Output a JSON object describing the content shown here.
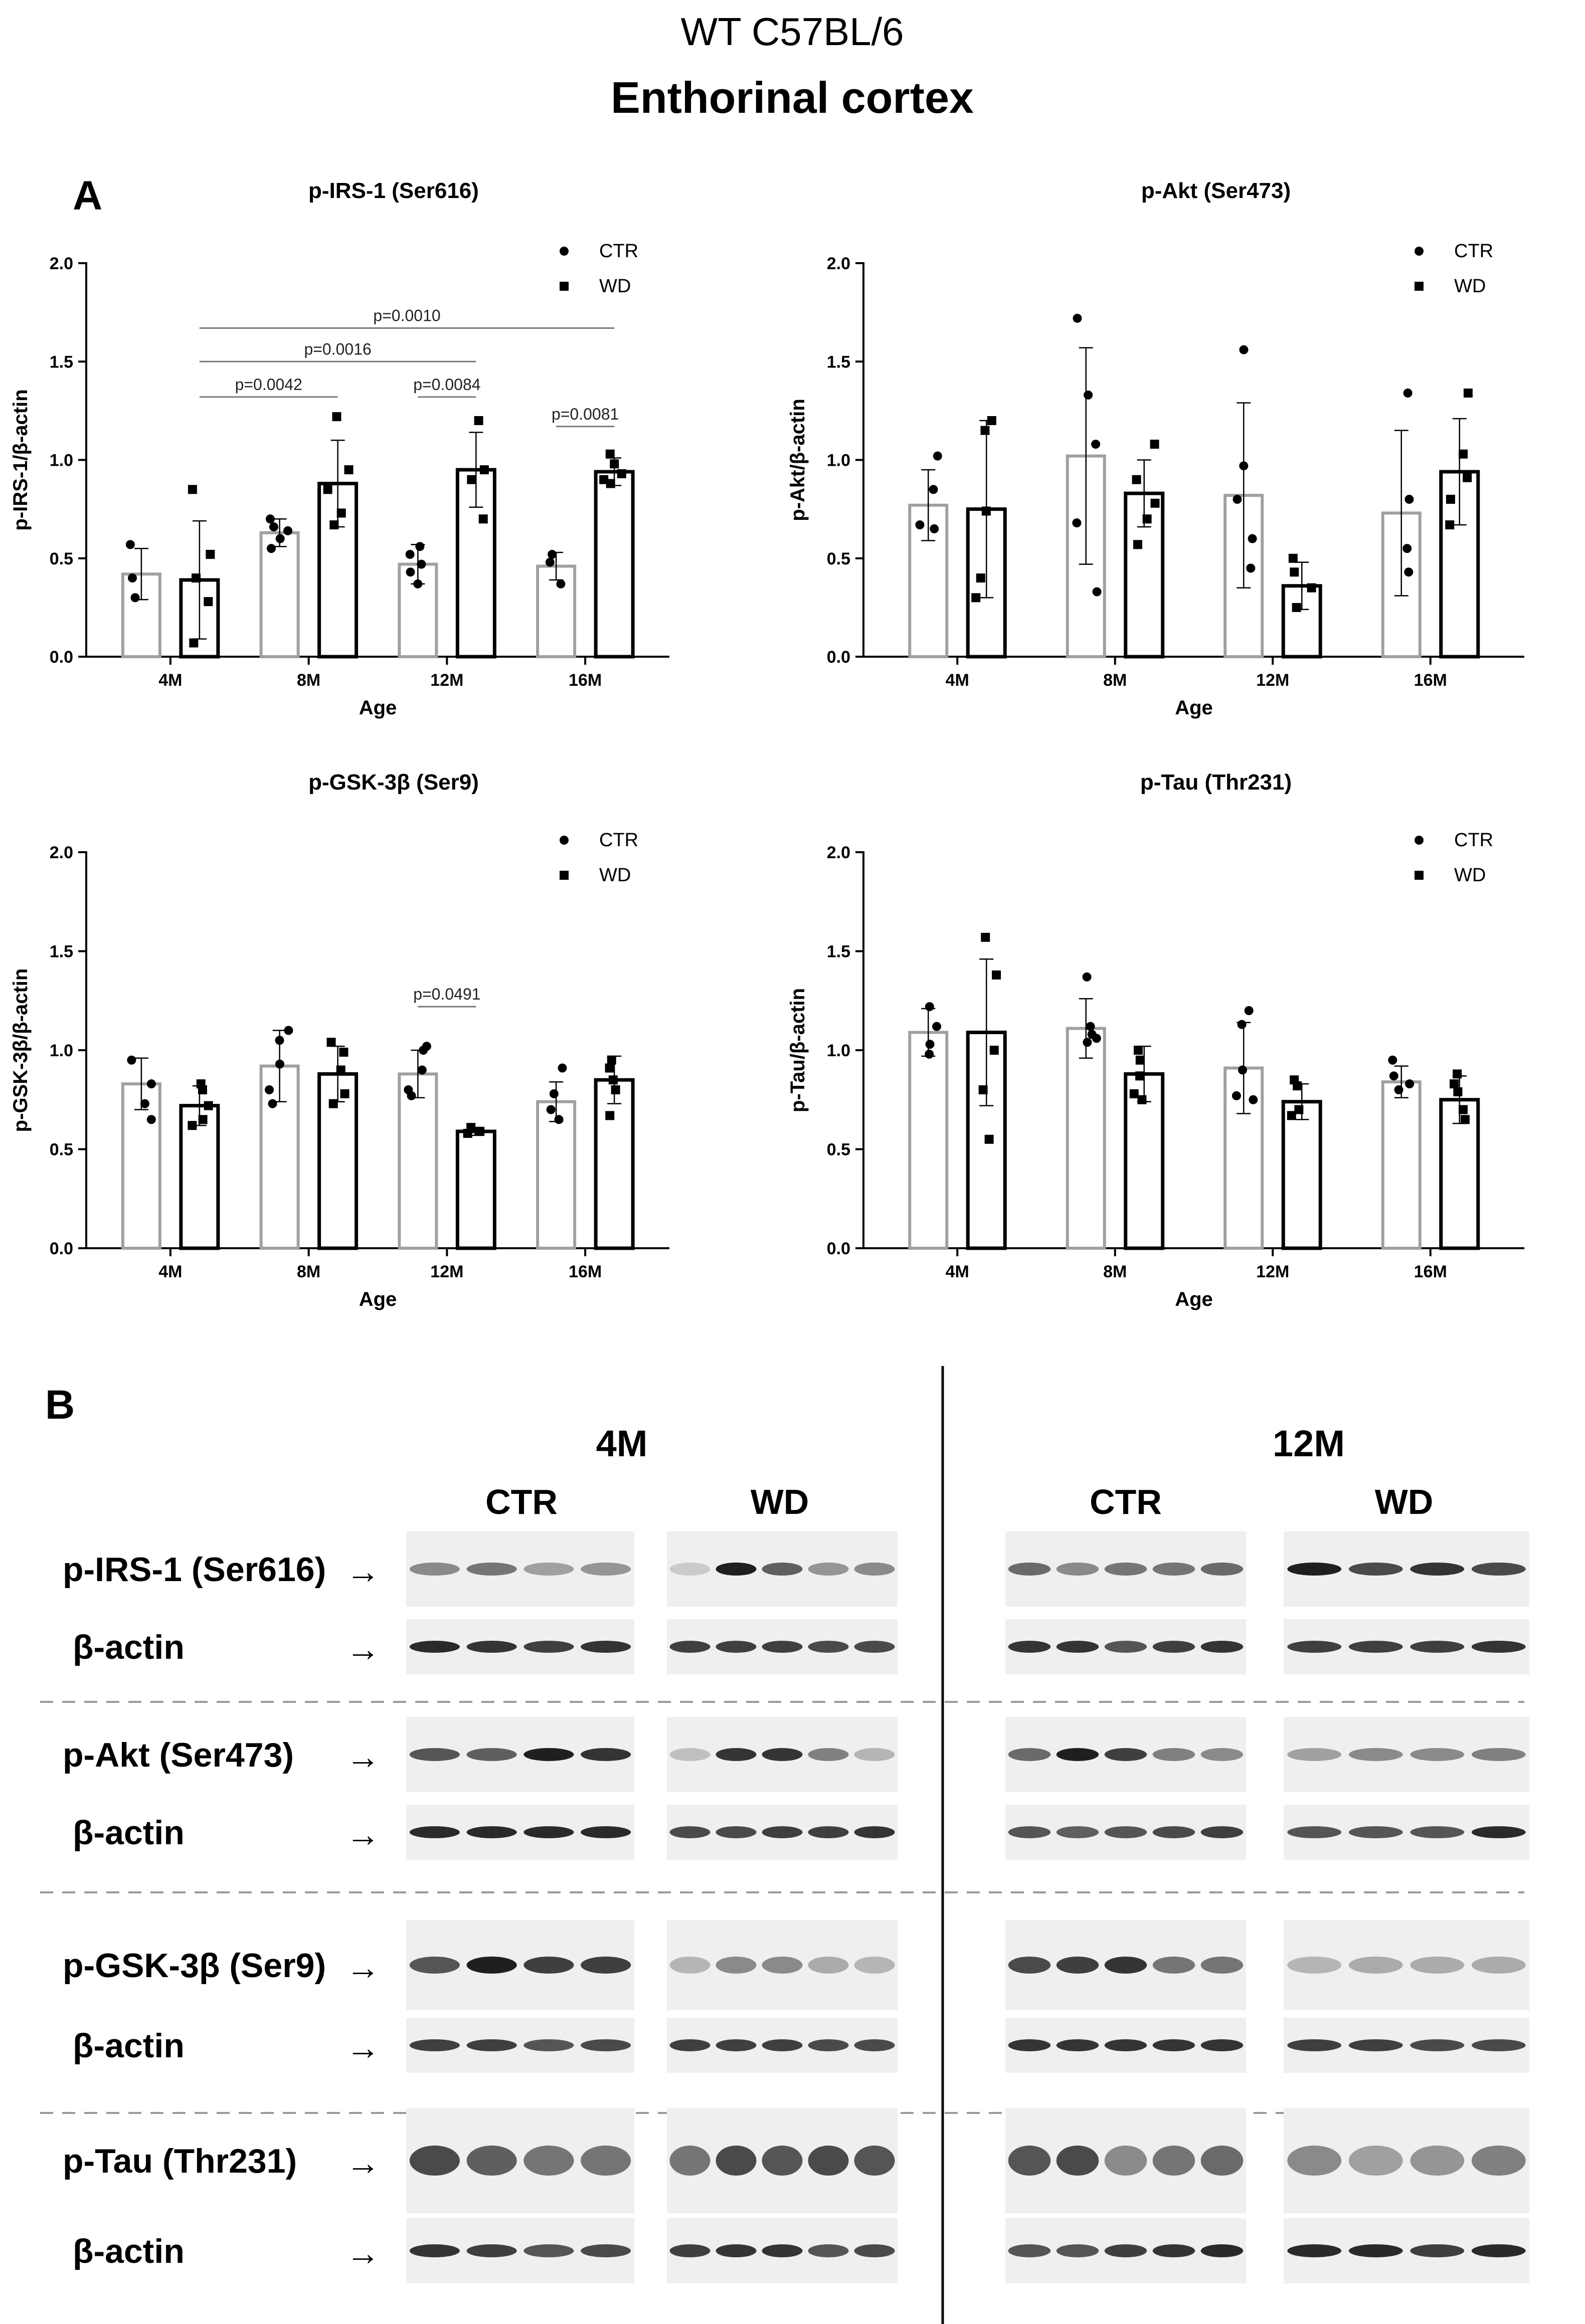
{
  "header": {
    "strain": "WT C57BL/6",
    "region": "Enthorinal cortex"
  },
  "panels": {
    "a_label": "A",
    "b_label": "B"
  },
  "chart_data": [
    {
      "type": "bar",
      "title": "p-IRS-1 (Ser616)",
      "xlabel": "Age",
      "ylabel": "p-IRS-1/β-actin",
      "ylim": [
        0,
        2.0
      ],
      "yticks": [
        "0.0",
        "0.5",
        "1.0",
        "1.5",
        "2.0"
      ],
      "grid": false,
      "legend_position": "top-right",
      "categories": [
        "4M",
        "8M",
        "12M",
        "16M"
      ],
      "series": [
        {
          "name": "CTR",
          "marker": "circle",
          "color": "#a0a0a0",
          "values": [
            0.42,
            0.63,
            0.47,
            0.46
          ],
          "error": [
            0.13,
            0.07,
            0.1,
            0.07
          ],
          "points": [
            [
              0.57,
              0.3,
              0.4
            ],
            [
              0.55,
              0.6,
              0.66,
              0.7,
              0.64
            ],
            [
              0.37,
              0.43,
              0.52,
              0.56,
              0.47
            ],
            [
              0.37,
              0.48,
              0.52
            ]
          ]
        },
        {
          "name": "WD",
          "marker": "square",
          "color": "#000000",
          "values": [
            0.39,
            0.88,
            0.95,
            0.94
          ],
          "error": [
            0.3,
            0.22,
            0.19,
            0.07
          ],
          "points": [
            [
              0.85,
              0.52,
              0.28,
              0.07,
              0.4
            ],
            [
              0.67,
              0.85,
              0.95,
              1.22,
              0.73
            ],
            [
              1.2,
              0.95,
              0.9,
              0.7
            ],
            [
              1.03,
              0.88,
              0.93,
              0.98,
              0.9
            ]
          ]
        }
      ],
      "annotations": [
        {
          "text": "p=0.0010",
          "from": "4M-WD",
          "to": "16M-WD",
          "level": 1.67
        },
        {
          "text": "p=0.0016",
          "from": "4M-WD",
          "to": "12M-WD",
          "level": 1.5
        },
        {
          "text": "p=0.0042",
          "from": "4M-WD",
          "to": "8M-WD",
          "level": 1.32
        },
        {
          "text": "p=0.0084",
          "from": "12M-CTR",
          "to": "12M-WD",
          "level": 1.32
        },
        {
          "text": "p=0.0081",
          "from": "16M-CTR",
          "to": "16M-WD",
          "level": 1.17
        }
      ]
    },
    {
      "type": "bar",
      "title": "p-Akt (Ser473)",
      "xlabel": "Age",
      "ylabel": "p-Akt/β-actin",
      "ylim": [
        0,
        2.0
      ],
      "yticks": [
        "0.0",
        "0.5",
        "1.0",
        "1.5",
        "2.0"
      ],
      "grid": false,
      "legend_position": "top-right",
      "categories": [
        "4M",
        "8M",
        "12M",
        "16M"
      ],
      "series": [
        {
          "name": "CTR",
          "marker": "circle",
          "color": "#a0a0a0",
          "values": [
            0.77,
            1.02,
            0.82,
            0.73
          ],
          "error": [
            0.18,
            0.55,
            0.47,
            0.42
          ],
          "points": [
            [
              1.02,
              0.85,
              0.67,
              0.65
            ],
            [
              1.72,
              1.33,
              1.08,
              0.68,
              0.33
            ],
            [
              1.56,
              0.97,
              0.8,
              0.6,
              0.45
            ],
            [
              1.34,
              0.8,
              0.55,
              0.43
            ]
          ]
        },
        {
          "name": "WD",
          "marker": "square",
          "color": "#000000",
          "values": [
            0.75,
            0.83,
            0.36,
            0.94
          ],
          "error": [
            0.45,
            0.17,
            0.12,
            0.27
          ],
          "points": [
            [
              1.2,
              1.15,
              0.74,
              0.4,
              0.3
            ],
            [
              1.08,
              0.9,
              0.78,
              0.7,
              0.57
            ],
            [
              0.5,
              0.43,
              0.35,
              0.25
            ],
            [
              1.34,
              1.03,
              0.91,
              0.8,
              0.67
            ]
          ]
        }
      ],
      "annotations": []
    },
    {
      "type": "bar",
      "title": "p-GSK-3β (Ser9)",
      "xlabel": "Age",
      "ylabel": "p-GSK-3β/β-actin",
      "ylim": [
        0,
        2.0
      ],
      "yticks": [
        "0.0",
        "0.5",
        "1.0",
        "1.5",
        "2.0"
      ],
      "grid": false,
      "legend_position": "top-right",
      "categories": [
        "4M",
        "8M",
        "12M",
        "16M"
      ],
      "series": [
        {
          "name": "CTR",
          "marker": "circle",
          "color": "#a0a0a0",
          "values": [
            0.83,
            0.92,
            0.88,
            0.74
          ],
          "error": [
            0.13,
            0.18,
            0.12,
            0.1
          ],
          "points": [
            [
              0.95,
              0.83,
              0.73,
              0.65
            ],
            [
              1.1,
              1.05,
              0.93,
              0.8,
              0.73
            ],
            [
              1.02,
              1.0,
              0.9,
              0.8,
              0.77
            ],
            [
              0.91,
              0.78,
              0.7,
              0.65
            ]
          ]
        },
        {
          "name": "WD",
          "marker": "square",
          "color": "#000000",
          "values": [
            0.72,
            0.88,
            0.59,
            0.85
          ],
          "error": [
            0.1,
            0.14,
            0.02,
            0.12
          ],
          "points": [
            [
              0.83,
              0.8,
              0.72,
              0.65,
              0.62
            ],
            [
              1.04,
              0.99,
              0.9,
              0.78,
              0.73
            ],
            [
              0.61,
              0.59,
              0.59,
              0.58
            ],
            [
              0.95,
              0.91,
              0.85,
              0.8,
              0.67
            ]
          ]
        }
      ],
      "annotations": [
        {
          "text": "p=0.0491",
          "from": "12M-CTR",
          "to": "12M-WD",
          "level": 1.22
        }
      ]
    },
    {
      "type": "bar",
      "title": "p-Tau (Thr231)",
      "xlabel": "Age",
      "ylabel": "p-Tau/β-actin",
      "ylim": [
        0,
        2.0
      ],
      "yticks": [
        "0.0",
        "0.5",
        "1.0",
        "1.5",
        "2.0"
      ],
      "grid": false,
      "legend_position": "top-right",
      "categories": [
        "4M",
        "8M",
        "12M",
        "16M"
      ],
      "series": [
        {
          "name": "CTR",
          "marker": "circle",
          "color": "#a0a0a0",
          "values": [
            1.09,
            1.11,
            0.91,
            0.84
          ],
          "error": [
            0.12,
            0.15,
            0.23,
            0.08
          ],
          "points": [
            [
              1.22,
              1.12,
              1.03,
              0.98
            ],
            [
              1.37,
              1.12,
              1.08,
              1.06,
              1.04
            ],
            [
              1.2,
              1.13,
              0.9,
              0.77,
              0.75
            ],
            [
              0.95,
              0.87,
              0.83,
              0.8
            ]
          ]
        },
        {
          "name": "WD",
          "marker": "square",
          "color": "#000000",
          "values": [
            1.09,
            0.88,
            0.74,
            0.75
          ],
          "error": [
            0.37,
            0.14,
            0.09,
            0.12
          ],
          "points": [
            [
              1.57,
              1.38,
              1.0,
              0.8,
              0.55
            ],
            [
              1.0,
              0.95,
              0.87,
              0.78,
              0.75
            ],
            [
              0.85,
              0.82,
              0.7,
              0.67
            ],
            [
              0.88,
              0.83,
              0.79,
              0.7,
              0.65
            ]
          ]
        }
      ],
      "annotations": []
    }
  ],
  "blot": {
    "ages": [
      "4M",
      "12M"
    ],
    "groups": [
      "CTR",
      "WD"
    ],
    "rows": [
      {
        "label": "p-IRS-1 (Ser616)",
        "arrow": "→"
      },
      {
        "label": "β-actin",
        "arrow": "→"
      },
      {
        "label": "p-Akt (Ser473)",
        "arrow": "→"
      },
      {
        "label": "β-actin",
        "arrow": "→"
      },
      {
        "label": "p-GSK-3β (Ser9)",
        "arrow": "→"
      },
      {
        "label": "β-actin",
        "arrow": "→"
      },
      {
        "label": "p-Tau (Thr231)",
        "arrow": "→"
      },
      {
        "label": "β-actin",
        "arrow": "→"
      }
    ]
  },
  "colors": {
    "ctr_bar": "#a0a0a0",
    "wd_bar": "#000000",
    "blot_band": "#1c1c1c",
    "separator": "#9a9a9a"
  }
}
